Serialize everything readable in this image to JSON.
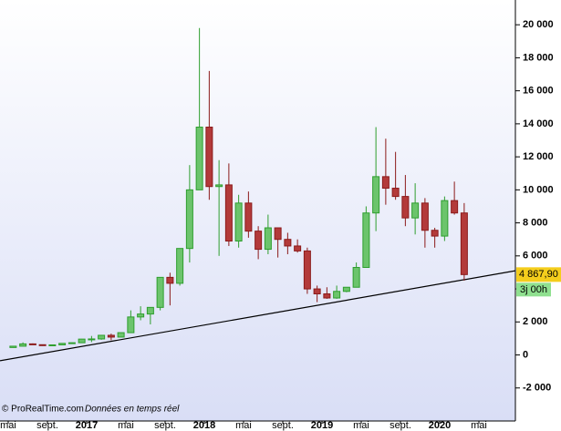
{
  "chart_data": {
    "type": "candlestick",
    "categories": [
      "mai",
      null,
      null,
      null,
      "sept.",
      null,
      null,
      null,
      "2017",
      null,
      null,
      null,
      "mai",
      null,
      null,
      null,
      "sept.",
      null,
      null,
      null,
      "2018",
      null,
      null,
      null,
      "mai",
      null,
      null,
      null,
      "sept.",
      null,
      null,
      null,
      "2019",
      null,
      null,
      null,
      "mai",
      null,
      null,
      null,
      "sept.",
      null,
      null,
      null,
      "2020",
      null,
      null,
      null,
      "mai"
    ],
    "open": [
      450,
      530,
      670,
      620,
      575,
      610,
      700,
      740,
      960,
      970,
      1190,
      1080,
      1350,
      2300,
      2480,
      2880,
      4700,
      4340,
      6450,
      10000,
      13800,
      10200,
      10300,
      6900,
      9200,
      7500,
      6400,
      7700,
      7000,
      6600,
      6300,
      4000,
      3700,
      3450,
      3850,
      4100,
      5300,
      8600,
      10800,
      10100,
      9600,
      8300,
      9200,
      7550,
      7200,
      9350,
      8600,
      null,
      null
    ],
    "high": [
      550,
      760,
      700,
      620,
      620,
      720,
      750,
      970,
      1150,
      1200,
      1290,
      1350,
      2700,
      2950,
      2900,
      4700,
      4980,
      6450,
      11500,
      19800,
      17200,
      11800,
      11600,
      9700,
      9900,
      7800,
      8500,
      7700,
      7400,
      7000,
      6500,
      4200,
      4100,
      4200,
      4100,
      5600,
      9000,
      13800,
      13100,
      12300,
      10900,
      10400,
      9500,
      7700,
      9600,
      10500,
      9200,
      null,
      null
    ],
    "low": [
      440,
      520,
      620,
      550,
      590,
      600,
      700,
      740,
      780,
      920,
      890,
      1080,
      1350,
      2100,
      1850,
      2700,
      3000,
      4200,
      5600,
      10000,
      9400,
      6000,
      6600,
      6500,
      7100,
      5800,
      6100,
      5900,
      6100,
      6200,
      3700,
      3200,
      3400,
      3400,
      3800,
      4100,
      5300,
      7500,
      9100,
      9400,
      7800,
      7300,
      6500,
      6500,
      6900,
      8500,
      4500,
      null,
      null
    ],
    "close": [
      530,
      670,
      620,
      575,
      610,
      700,
      740,
      960,
      970,
      1190,
      1080,
      1350,
      2300,
      2480,
      2880,
      4700,
      4340,
      6450,
      10000,
      13800,
      10200,
      10300,
      6900,
      9200,
      7500,
      6400,
      7700,
      7000,
      6600,
      6300,
      4000,
      3700,
      3450,
      3850,
      4100,
      5300,
      8600,
      10800,
      10100,
      9600,
      8300,
      9200,
      7550,
      7200,
      9350,
      8600,
      4867.9,
      null,
      null
    ],
    "up_color": "#2e9e2e",
    "down_color": "#8b1a1a",
    "ylim": [
      -4000,
      21500
    ],
    "yticks": [
      {
        "value": -2000,
        "label": "-2 000"
      },
      0,
      {
        "value": 2000,
        "label": "2 000"
      },
      {
        "value": 4000,
        "label": "4 000"
      },
      {
        "value": 6000,
        "label": "6 000"
      },
      {
        "value": 8000,
        "label": "8 000"
      },
      {
        "value": 10000,
        "label": "10 000"
      },
      {
        "value": 12000,
        "label": "12 000"
      },
      {
        "value": 14000,
        "label": "14 000"
      },
      {
        "value": 16000,
        "label": "16 000"
      },
      {
        "value": 18000,
        "label": "18 000"
      },
      {
        "value": 20000,
        "label": "20 000"
      }
    ],
    "trend_line": {
      "start": -350,
      "end": 5100,
      "color": "#000000"
    },
    "last_price": {
      "value": 4867.9,
      "label": "4 867,90"
    },
    "countdown": "3j 00h",
    "source": "© ProRealTime.com",
    "note": "Données en temps réel"
  }
}
